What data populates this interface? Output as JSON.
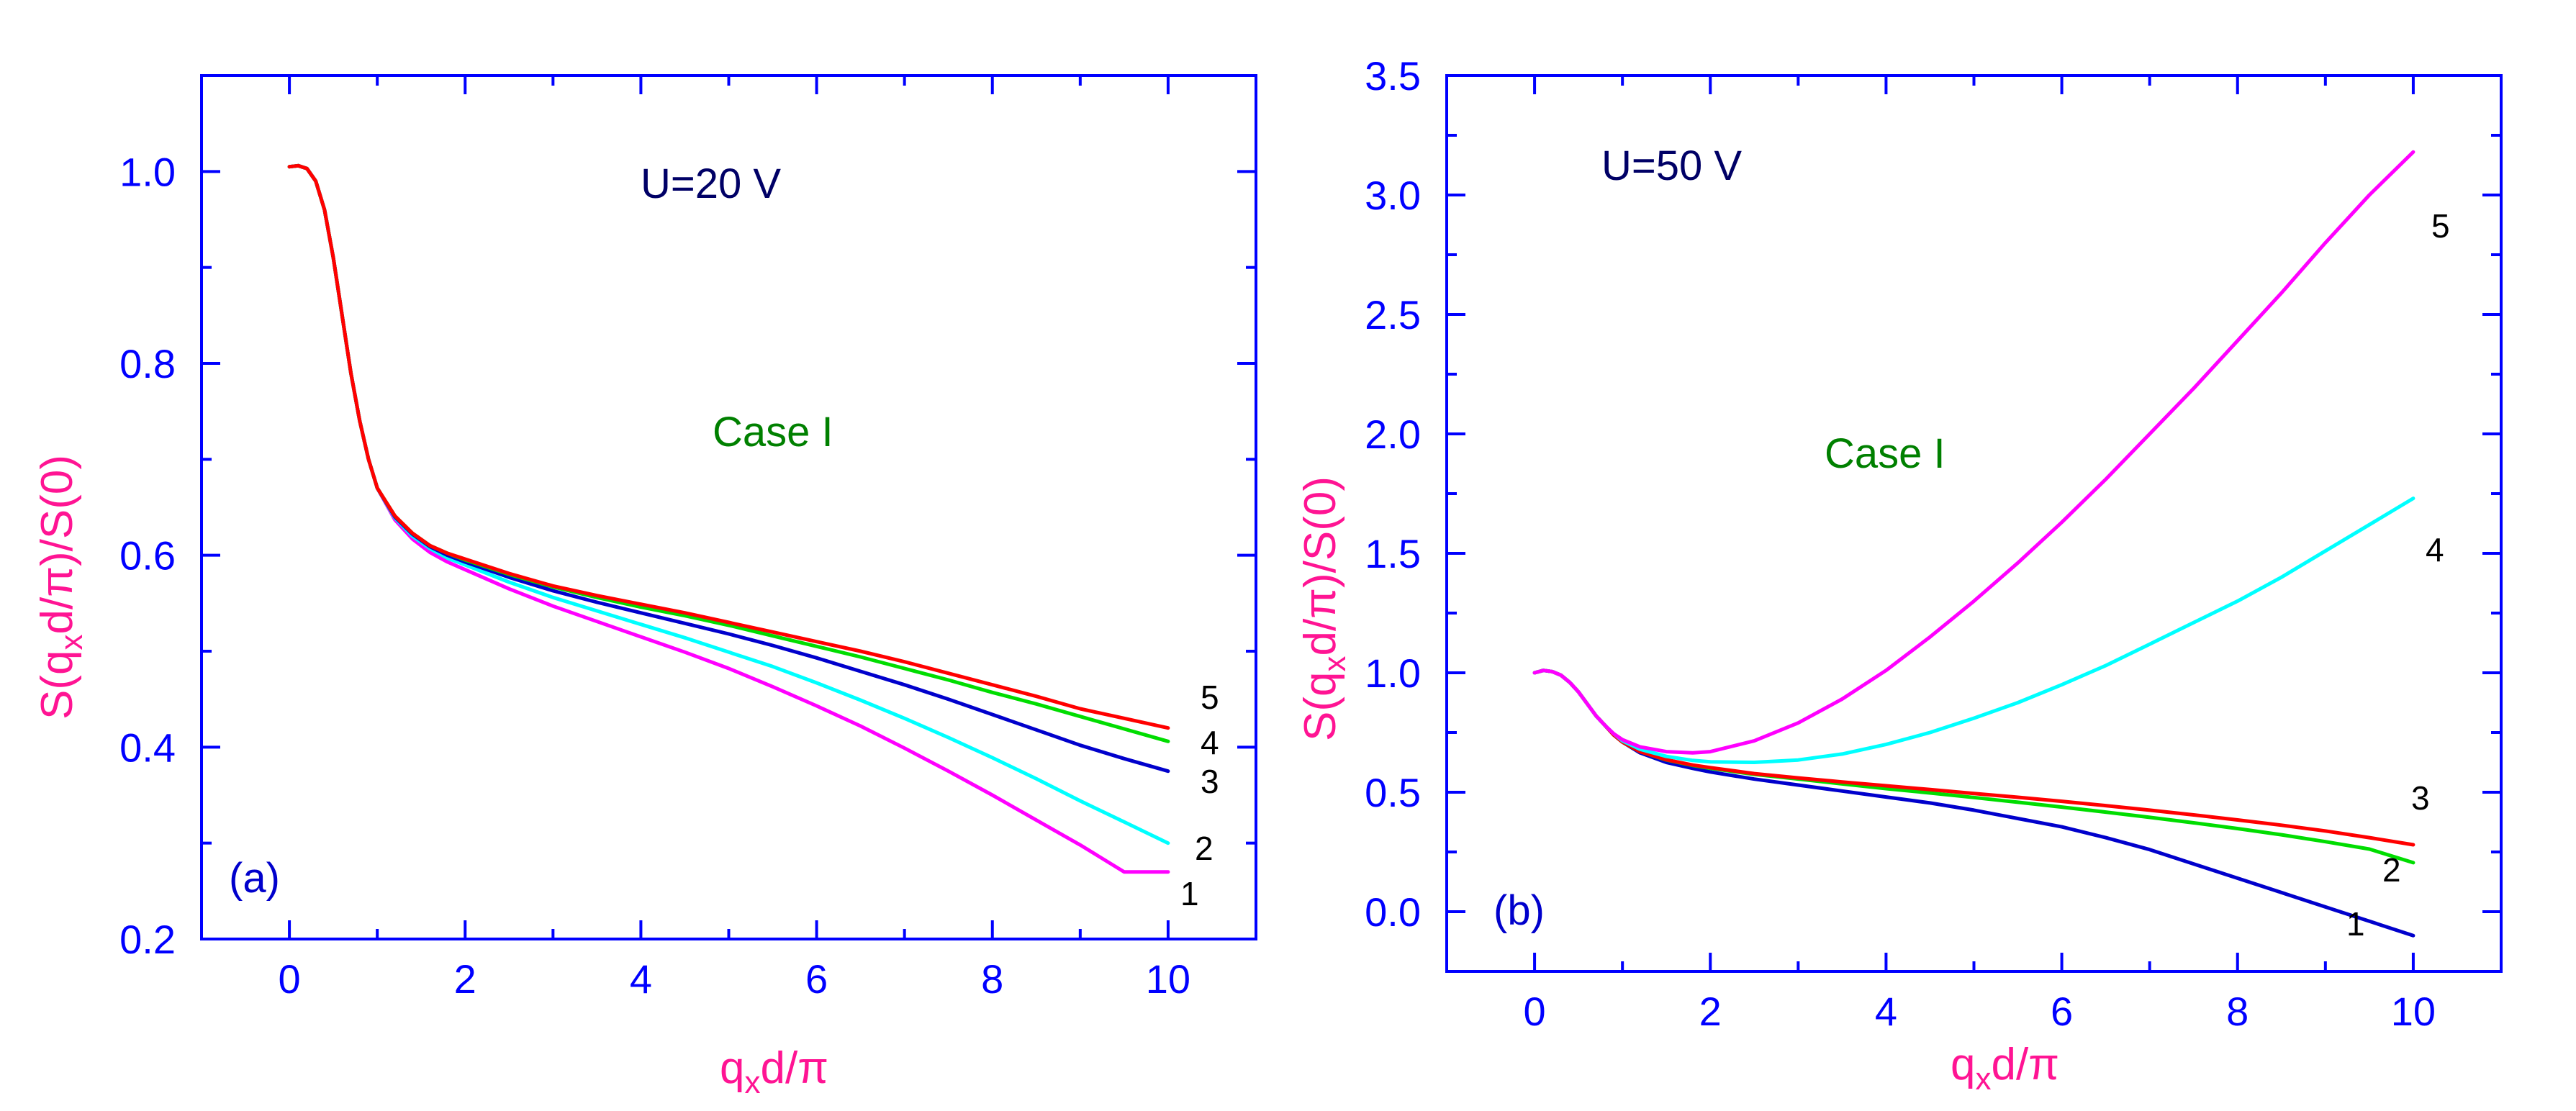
{
  "colors": {
    "axis": "#0000ff",
    "label": "#ff1493",
    "annotation_u": "#000066",
    "annotation_case": "#008000",
    "panel_tag": "#0000cc",
    "curve_number": "#000000",
    "magenta": "#ff00ff",
    "cyan": "#00ffff",
    "blue": "#0000cc",
    "green": "#00dd00",
    "red": "#ff0000"
  },
  "chart_data": [
    {
      "type": "line",
      "panel": "(a)",
      "voltage_label": "U=20 V",
      "case_label": "Case I",
      "xlabel": {
        "main": "q",
        "sub": "x",
        "tail": "d/π"
      },
      "ylabel": {
        "pre": "S(q",
        "sub": "x",
        "mid": "d/π",
        "post": ")/S(0)"
      },
      "xlim": [
        -1,
        11
      ],
      "ylim": [
        0.2,
        1.1
      ],
      "xticks": [
        0,
        2,
        4,
        6,
        8,
        10
      ],
      "xtick_labels": [
        "0",
        "2",
        "4",
        "6",
        "8",
        "10"
      ],
      "yticks": [
        0.2,
        0.4,
        0.6,
        0.8,
        1.0
      ],
      "ytick_labels": [
        "0.2",
        "0.4",
        "0.6",
        "0.8",
        "1.0"
      ],
      "series": [
        {
          "name": "1",
          "color": "#ff00ff",
          "x": [
            0,
            0.1,
            0.2,
            0.3,
            0.4,
            0.5,
            0.6,
            0.7,
            0.8,
            0.9,
            1.0,
            1.2,
            1.4,
            1.6,
            1.8,
            2.0,
            2.5,
            3,
            3.5,
            4,
            4.5,
            5,
            5.5,
            6,
            6.5,
            7,
            7.5,
            8,
            8.5,
            9,
            9.5,
            10
          ],
          "y": [
            1.005,
            1.006,
            1.003,
            0.99,
            0.96,
            0.91,
            0.85,
            0.79,
            0.74,
            0.7,
            0.67,
            0.637,
            0.617,
            0.603,
            0.593,
            0.585,
            0.565,
            0.547,
            0.531,
            0.515,
            0.499,
            0.482,
            0.463,
            0.443,
            0.422,
            0.399,
            0.375,
            0.35,
            0.324,
            0.298,
            0.27,
            0.27
          ]
        },
        {
          "name": "2",
          "color": "#00ffff",
          "x": [
            0,
            0.1,
            0.2,
            0.3,
            0.4,
            0.5,
            0.6,
            0.7,
            0.8,
            0.9,
            1.0,
            1.2,
            1.4,
            1.6,
            1.8,
            2.0,
            2.5,
            3,
            3.5,
            4,
            4.5,
            5,
            5.5,
            6,
            6.5,
            7,
            7.5,
            8,
            8.5,
            9,
            9.5,
            10
          ],
          "y": [
            1.005,
            1.006,
            1.003,
            0.99,
            0.96,
            0.91,
            0.85,
            0.79,
            0.74,
            0.7,
            0.67,
            0.639,
            0.62,
            0.607,
            0.597,
            0.59,
            0.572,
            0.556,
            0.542,
            0.528,
            0.514,
            0.499,
            0.484,
            0.467,
            0.449,
            0.43,
            0.41,
            0.389,
            0.367,
            0.344,
            0.322,
            0.3
          ]
        },
        {
          "name": "3",
          "color": "#0000cc",
          "x": [
            0,
            0.1,
            0.2,
            0.3,
            0.4,
            0.5,
            0.6,
            0.7,
            0.8,
            0.9,
            1.0,
            1.2,
            1.4,
            1.6,
            1.8,
            2.0,
            2.5,
            3,
            3.5,
            4,
            4.5,
            5,
            5.5,
            6,
            6.5,
            7,
            7.5,
            8,
            8.5,
            9,
            9.5,
            10
          ],
          "y": [
            1.005,
            1.006,
            1.003,
            0.99,
            0.96,
            0.91,
            0.85,
            0.79,
            0.74,
            0.7,
            0.67,
            0.64,
            0.622,
            0.609,
            0.6,
            0.593,
            0.577,
            0.563,
            0.551,
            0.54,
            0.529,
            0.518,
            0.506,
            0.493,
            0.479,
            0.465,
            0.45,
            0.434,
            0.418,
            0.402,
            0.388,
            0.375
          ]
        },
        {
          "name": "4",
          "color": "#00dd00",
          "x": [
            0,
            0.1,
            0.2,
            0.3,
            0.4,
            0.5,
            0.6,
            0.7,
            0.8,
            0.9,
            1.0,
            1.2,
            1.4,
            1.6,
            1.8,
            2.0,
            2.5,
            3,
            3.5,
            4,
            4.5,
            5,
            5.5,
            6,
            6.5,
            7,
            7.5,
            8,
            8.5,
            9,
            9.5,
            10
          ],
          "y": [
            1.005,
            1.006,
            1.003,
            0.99,
            0.96,
            0.91,
            0.85,
            0.79,
            0.74,
            0.7,
            0.67,
            0.641,
            0.623,
            0.61,
            0.602,
            0.595,
            0.58,
            0.567,
            0.556,
            0.546,
            0.537,
            0.527,
            0.516,
            0.505,
            0.494,
            0.482,
            0.47,
            0.457,
            0.445,
            0.432,
            0.419,
            0.406
          ]
        },
        {
          "name": "5",
          "color": "#ff0000",
          "x": [
            0,
            0.1,
            0.2,
            0.3,
            0.4,
            0.5,
            0.6,
            0.7,
            0.8,
            0.9,
            1.0,
            1.2,
            1.4,
            1.6,
            1.8,
            2.0,
            2.5,
            3,
            3.5,
            4,
            4.5,
            5,
            5.5,
            6,
            6.5,
            7,
            7.5,
            8,
            8.5,
            9,
            9.5,
            10
          ],
          "y": [
            1.005,
            1.006,
            1.003,
            0.99,
            0.96,
            0.91,
            0.85,
            0.79,
            0.74,
            0.7,
            0.67,
            0.641,
            0.623,
            0.61,
            0.602,
            0.596,
            0.581,
            0.568,
            0.558,
            0.549,
            0.54,
            0.53,
            0.52,
            0.51,
            0.5,
            0.489,
            0.477,
            0.465,
            0.453,
            0.44,
            0.43,
            0.42
          ]
        }
      ]
    },
    {
      "type": "line",
      "panel": "(b)",
      "voltage_label": "U=50 V",
      "case_label": "Case I",
      "xlabel": {
        "main": "q",
        "sub": "x",
        "tail": "d/π"
      },
      "ylabel": {
        "pre": "S(q",
        "sub": "x",
        "mid": "d/π",
        "post": ")/S(0)"
      },
      "xlim": [
        -1,
        11
      ],
      "ylim": [
        -0.25,
        3.5
      ],
      "xticks": [
        0,
        2,
        4,
        6,
        8,
        10
      ],
      "xtick_labels": [
        "0",
        "2",
        "4",
        "6",
        "8",
        "10"
      ],
      "yticks": [
        0.0,
        0.5,
        1.0,
        1.5,
        2.0,
        2.5,
        3.0,
        3.5
      ],
      "ytick_labels": [
        "0.0",
        "0.5",
        "1.0",
        "1.5",
        "2.0",
        "2.5",
        "3.0",
        "3.5"
      ],
      "series": [
        {
          "name": "1",
          "color": "#0000cc",
          "x": [
            0,
            0.1,
            0.2,
            0.3,
            0.4,
            0.5,
            0.6,
            0.7,
            0.8,
            0.9,
            1.0,
            1.2,
            1.5,
            1.8,
            2,
            2.5,
            3,
            3.5,
            4,
            4.5,
            5,
            5.5,
            6,
            6.5,
            7,
            7.5,
            8,
            8.5,
            9,
            9.5,
            10
          ],
          "y": [
            1.0,
            1.01,
            1.005,
            0.99,
            0.96,
            0.92,
            0.87,
            0.82,
            0.78,
            0.74,
            0.71,
            0.665,
            0.625,
            0.6,
            0.585,
            0.555,
            0.53,
            0.505,
            0.48,
            0.455,
            0.425,
            0.39,
            0.355,
            0.31,
            0.26,
            0.2,
            0.14,
            0.08,
            0.02,
            -0.04,
            -0.1
          ]
        },
        {
          "name": "2",
          "color": "#00dd00",
          "x": [
            0,
            0.1,
            0.2,
            0.3,
            0.4,
            0.5,
            0.6,
            0.7,
            0.8,
            0.9,
            1.0,
            1.2,
            1.5,
            1.8,
            2,
            2.5,
            3,
            3.5,
            4,
            4.5,
            5,
            5.5,
            6,
            6.5,
            7,
            7.5,
            8,
            8.5,
            9,
            9.5,
            10
          ],
          "y": [
            1.0,
            1.01,
            1.005,
            0.99,
            0.96,
            0.92,
            0.87,
            0.82,
            0.78,
            0.74,
            0.71,
            0.67,
            0.635,
            0.612,
            0.6,
            0.575,
            0.555,
            0.535,
            0.515,
            0.497,
            0.478,
            0.458,
            0.438,
            0.417,
            0.395,
            0.372,
            0.348,
            0.322,
            0.293,
            0.262,
            0.205
          ]
        },
        {
          "name": "3",
          "color": "#ff0000",
          "x": [
            0,
            0.1,
            0.2,
            0.3,
            0.4,
            0.5,
            0.6,
            0.7,
            0.8,
            0.9,
            1.0,
            1.2,
            1.5,
            1.8,
            2,
            2.5,
            3,
            3.5,
            4,
            4.5,
            5,
            5.5,
            6,
            6.5,
            7,
            7.5,
            8,
            8.5,
            9,
            9.5,
            10
          ],
          "y": [
            1.0,
            1.01,
            1.005,
            0.99,
            0.96,
            0.92,
            0.87,
            0.82,
            0.78,
            0.74,
            0.71,
            0.67,
            0.636,
            0.614,
            0.603,
            0.578,
            0.56,
            0.543,
            0.527,
            0.511,
            0.495,
            0.479,
            0.462,
            0.444,
            0.425,
            0.405,
            0.384,
            0.362,
            0.338,
            0.31,
            0.28
          ]
        },
        {
          "name": "4",
          "color": "#00ffff",
          "x": [
            0,
            0.1,
            0.2,
            0.3,
            0.4,
            0.5,
            0.6,
            0.7,
            0.8,
            0.9,
            1.0,
            1.2,
            1.5,
            1.8,
            2,
            2.5,
            3,
            3.5,
            4,
            4.5,
            5,
            5.5,
            6,
            6.5,
            7,
            7.5,
            8,
            8.5,
            9,
            9.5,
            10
          ],
          "y": [
            1.0,
            1.01,
            1.005,
            0.99,
            0.96,
            0.92,
            0.87,
            0.82,
            0.78,
            0.745,
            0.715,
            0.68,
            0.65,
            0.633,
            0.627,
            0.625,
            0.635,
            0.66,
            0.7,
            0.75,
            0.81,
            0.875,
            0.95,
            1.03,
            1.12,
            1.21,
            1.3,
            1.4,
            1.51,
            1.62,
            1.73
          ]
        },
        {
          "name": "5",
          "color": "#ff00ff",
          "x": [
            0,
            0.1,
            0.2,
            0.3,
            0.4,
            0.5,
            0.6,
            0.7,
            0.8,
            0.9,
            1.0,
            1.2,
            1.5,
            1.8,
            2,
            2.5,
            3,
            3.5,
            4,
            4.5,
            5,
            5.5,
            6,
            6.5,
            7,
            7.5,
            8,
            8.5,
            9,
            9.5,
            10
          ],
          "y": [
            1.0,
            1.01,
            1.005,
            0.99,
            0.96,
            0.92,
            0.87,
            0.82,
            0.78,
            0.745,
            0.72,
            0.69,
            0.67,
            0.665,
            0.67,
            0.715,
            0.79,
            0.89,
            1.01,
            1.15,
            1.3,
            1.46,
            1.63,
            1.81,
            2.0,
            2.19,
            2.39,
            2.59,
            2.8,
            3.0,
            3.18
          ]
        }
      ]
    }
  ]
}
